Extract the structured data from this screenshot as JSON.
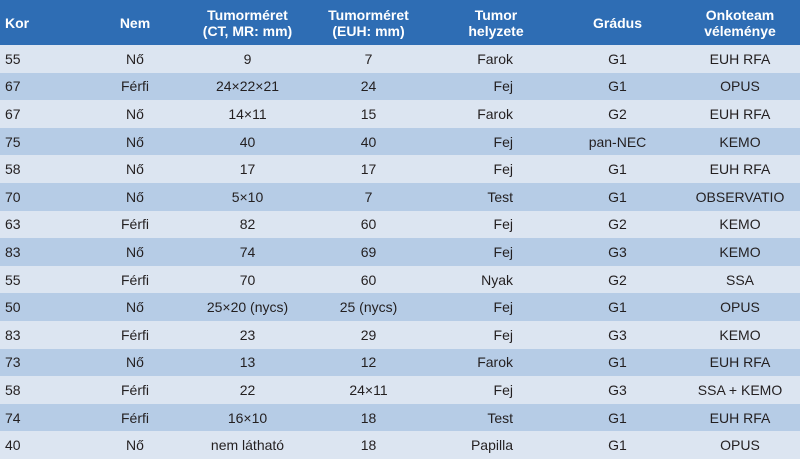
{
  "table": {
    "headers": [
      "Kor",
      "Nem",
      "Tumorméret\n(CT, MR: mm)",
      "Tumorméret\n(EUH: mm)",
      "Tumor\nhelyzete",
      "Grádus",
      "Onkoteam\nvéleménye"
    ],
    "rows": [
      [
        "55",
        "Nő",
        "9",
        "7",
        "Farok",
        "G1",
        "EUH RFA"
      ],
      [
        "67",
        "Férfi",
        "24×22×21",
        "24",
        "Fej",
        "G1",
        "OPUS"
      ],
      [
        "67",
        "Nő",
        "14×11",
        "15",
        "Farok",
        "G2",
        "EUH RFA"
      ],
      [
        "75",
        "Nő",
        "40",
        "40",
        "Fej",
        "pan-NEC",
        "KEMO"
      ],
      [
        "58",
        "Nő",
        "17",
        "17",
        "Fej",
        "G1",
        "EUH RFA"
      ],
      [
        "70",
        "Nő",
        "5×10",
        "7",
        "Test",
        "G1",
        "OBSERVATIO"
      ],
      [
        "63",
        "Férfi",
        "82",
        "60",
        "Fej",
        "G2",
        "KEMO"
      ],
      [
        "83",
        "Nő",
        "74",
        "69",
        "Fej",
        "G3",
        "KEMO"
      ],
      [
        "55",
        "Férfi",
        "70",
        "60",
        "Nyak",
        "G2",
        "SSA"
      ],
      [
        "50",
        "Nő",
        "25×20 (nycs)",
        "25 (nycs)",
        "Fej",
        "G1",
        "OPUS"
      ],
      [
        "83",
        "Férfi",
        "23",
        "29",
        "Fej",
        "G3",
        "KEMO"
      ],
      [
        "73",
        "Nő",
        "13",
        "12",
        "Farok",
        "G1",
        "EUH RFA"
      ],
      [
        "58",
        "Férfi",
        "22",
        "24×11",
        "Fej",
        "G3",
        "SSA + KEMO"
      ],
      [
        "74",
        "Férfi",
        "16×10",
        "18",
        "Test",
        "G1",
        "EUH RFA"
      ],
      [
        "40",
        "Nő",
        "nem látható",
        "18",
        "Papilla",
        "G1",
        "OPUS"
      ]
    ]
  }
}
